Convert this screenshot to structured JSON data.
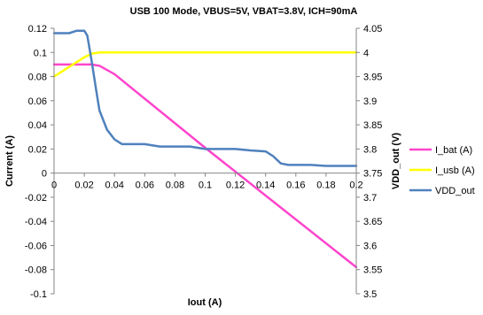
{
  "chart_data": {
    "type": "line",
    "title": "USB 100 Mode, VBUS=5V, VBAT=3.8V, ICH=90mA",
    "xlabel": "Iout (A)",
    "ylabel": "Current (A)",
    "y2label": "VDD_out (V)",
    "xlim": [
      0,
      0.2
    ],
    "ylim": [
      -0.1,
      0.12
    ],
    "y2lim": [
      3.5,
      4.05
    ],
    "x_ticks": [
      "0",
      "0.02",
      "0.04",
      "0.06",
      "0.08",
      "0.1",
      "0.12",
      "0.14",
      "0.16",
      "0.18",
      "0.2"
    ],
    "y_ticks": [
      "0.12",
      "0.1",
      "0.08",
      "0.06",
      "0.04",
      "0.02",
      "0",
      "-0.02",
      "-0.04",
      "-0.06",
      "-0.08",
      "-0.1"
    ],
    "y2_ticks": [
      "4.05",
      "4",
      "3.95",
      "3.9",
      "3.85",
      "3.8",
      "3.75",
      "3.7",
      "3.65",
      "3.6",
      "3.55",
      "3.5"
    ],
    "legend_position": "right",
    "grid": false,
    "series": [
      {
        "name": "I_bat (A)",
        "axis": "left",
        "color": "#ff44cc",
        "x": [
          0,
          0.01,
          0.02,
          0.025,
          0.03,
          0.04,
          0.1,
          0.2
        ],
        "y": [
          0.09,
          0.09,
          0.09,
          0.09,
          0.089,
          0.082,
          0.021,
          -0.078
        ]
      },
      {
        "name": "I_usb (A)",
        "axis": "left",
        "color": "#ffff00",
        "x": [
          0,
          0.005,
          0.01,
          0.015,
          0.02,
          0.025,
          0.03,
          0.1,
          0.2
        ],
        "y": [
          0.08,
          0.084,
          0.088,
          0.092,
          0.096,
          0.099,
          0.1,
          0.1,
          0.1
        ]
      },
      {
        "name": "VDD_out",
        "axis": "right",
        "color": "#4f81bd",
        "x": [
          0,
          0.005,
          0.01,
          0.015,
          0.02,
          0.022,
          0.025,
          0.028,
          0.03,
          0.035,
          0.04,
          0.045,
          0.05,
          0.06,
          0.07,
          0.08,
          0.09,
          0.1,
          0.11,
          0.12,
          0.13,
          0.14,
          0.145,
          0.15,
          0.155,
          0.16,
          0.17,
          0.18,
          0.19,
          0.2
        ],
        "y": [
          4.04,
          4.04,
          4.04,
          4.045,
          4.045,
          4.035,
          3.98,
          3.92,
          3.88,
          3.84,
          3.82,
          3.81,
          3.81,
          3.81,
          3.805,
          3.805,
          3.805,
          3.8,
          3.8,
          3.8,
          3.797,
          3.795,
          3.785,
          3.77,
          3.767,
          3.767,
          3.767,
          3.765,
          3.765,
          3.765
        ]
      }
    ]
  }
}
